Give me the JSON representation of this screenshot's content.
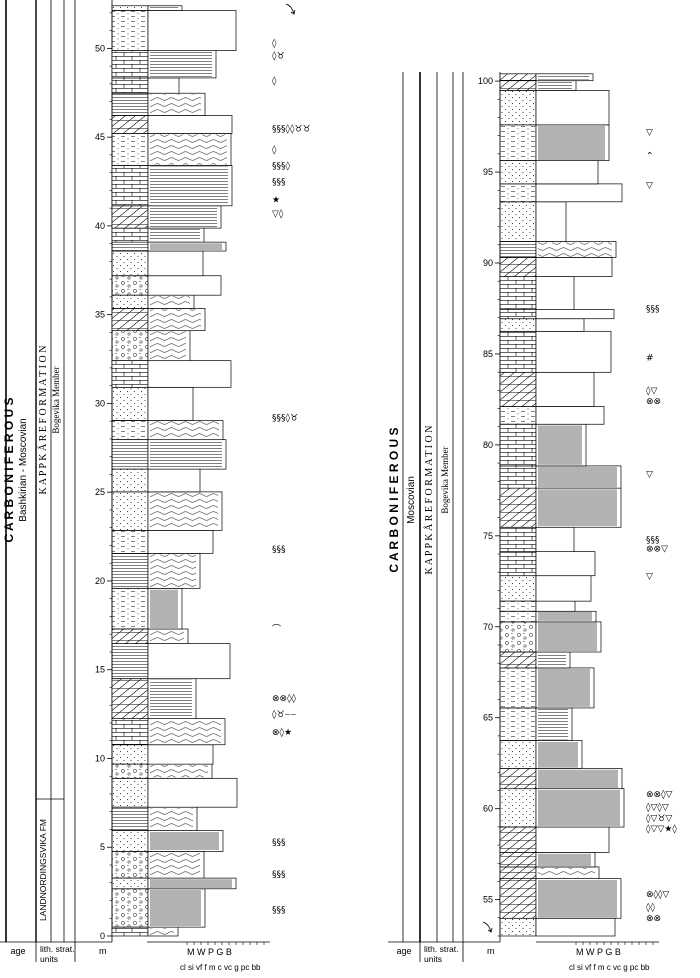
{
  "left_column": {
    "period": "C A R B O N I F E R O U S",
    "age": "Bashkirian - Moscovian",
    "formation": "K A P P   K Å R E   F O R M A T I O N",
    "member": "Bogevika  Member",
    "lower_formation": "LANDNORDINGSVIKA FM",
    "depth_ticks": [
      "0",
      "5",
      "10",
      "15",
      "20",
      "25",
      "30",
      "35",
      "40",
      "45",
      "50"
    ],
    "fossil_marks": [
      {
        "depth": 1.5,
        "symbols": "§§§"
      },
      {
        "depth": 3.5,
        "symbols": "§§§"
      },
      {
        "depth": 5.3,
        "symbols": "§§§"
      },
      {
        "depth": 11.5,
        "symbols": "⊗◊★"
      },
      {
        "depth": 12.5,
        "symbols": "◊♉⌣⌣"
      },
      {
        "depth": 13.4,
        "symbols": "⊗⊗◊◊"
      },
      {
        "depth": 17.3,
        "symbols": "⌒"
      },
      {
        "depth": 21.8,
        "symbols": "§§§"
      },
      {
        "depth": 29.2,
        "symbols": "§§§◊♉"
      },
      {
        "depth": 40.7,
        "symbols": "▽◊"
      },
      {
        "depth": 41.5,
        "symbols": "★"
      },
      {
        "depth": 42.5,
        "symbols": "§§§"
      },
      {
        "depth": 43.4,
        "symbols": "§§§◊"
      },
      {
        "depth": 44.3,
        "symbols": "◊"
      },
      {
        "depth": 45.5,
        "symbols": "§§§◊◊♉♉"
      },
      {
        "depth": 48.2,
        "symbols": "◊"
      },
      {
        "depth": 49.6,
        "symbols": "◊♉"
      },
      {
        "depth": 50.3,
        "symbols": "◊"
      }
    ]
  },
  "right_column": {
    "period": "C A R B O N I F E R O U S",
    "age": "Moscovian",
    "formation": "K A P P   K Å R E   F O R M A T I O N",
    "member": "Bogevika  Member",
    "depth_ticks": [
      "55",
      "60",
      "65",
      "70",
      "75",
      "80",
      "85",
      "90",
      "95",
      "100"
    ],
    "fossil_marks": [
      {
        "depth": 54.0,
        "symbols": "⊗⊗"
      },
      {
        "depth": 54.6,
        "symbols": "◊◊"
      },
      {
        "depth": 55.3,
        "symbols": "⊗◊◊▽"
      },
      {
        "depth": 58.9,
        "symbols": "◊▽▽★◊"
      },
      {
        "depth": 59.5,
        "symbols": "◊▽♉▽"
      },
      {
        "depth": 60.1,
        "symbols": "◊▽◊▽"
      },
      {
        "depth": 60.8,
        "symbols": "⊗⊗◊▽"
      },
      {
        "depth": 72.8,
        "symbols": "▽"
      },
      {
        "depth": 74.3,
        "symbols": "⊗⊗▽"
      },
      {
        "depth": 74.8,
        "symbols": "§§§"
      },
      {
        "depth": 78.4,
        "symbols": "▽"
      },
      {
        "depth": 82.4,
        "symbols": "⊗⊗"
      },
      {
        "depth": 83.0,
        "symbols": "◊▽"
      },
      {
        "depth": 84.8,
        "symbols": "#"
      },
      {
        "depth": 87.5,
        "symbols": "§§§"
      },
      {
        "depth": 94.3,
        "symbols": "▽"
      },
      {
        "depth": 95.9,
        "symbols": "⌃"
      },
      {
        "depth": 97.2,
        "symbols": "▽"
      }
    ]
  },
  "footer": {
    "age_label": "age",
    "strat_label_1": "lith. strat.",
    "strat_label_2": "units",
    "unit_label": "m",
    "grain_top": "M  W  P  G  B",
    "grain_bottom": "cl si vf  f  m c vc g  pc bb"
  },
  "colors": {
    "ink": "#000000",
    "paper": "#ffffff",
    "fill": "#ffffff"
  }
}
